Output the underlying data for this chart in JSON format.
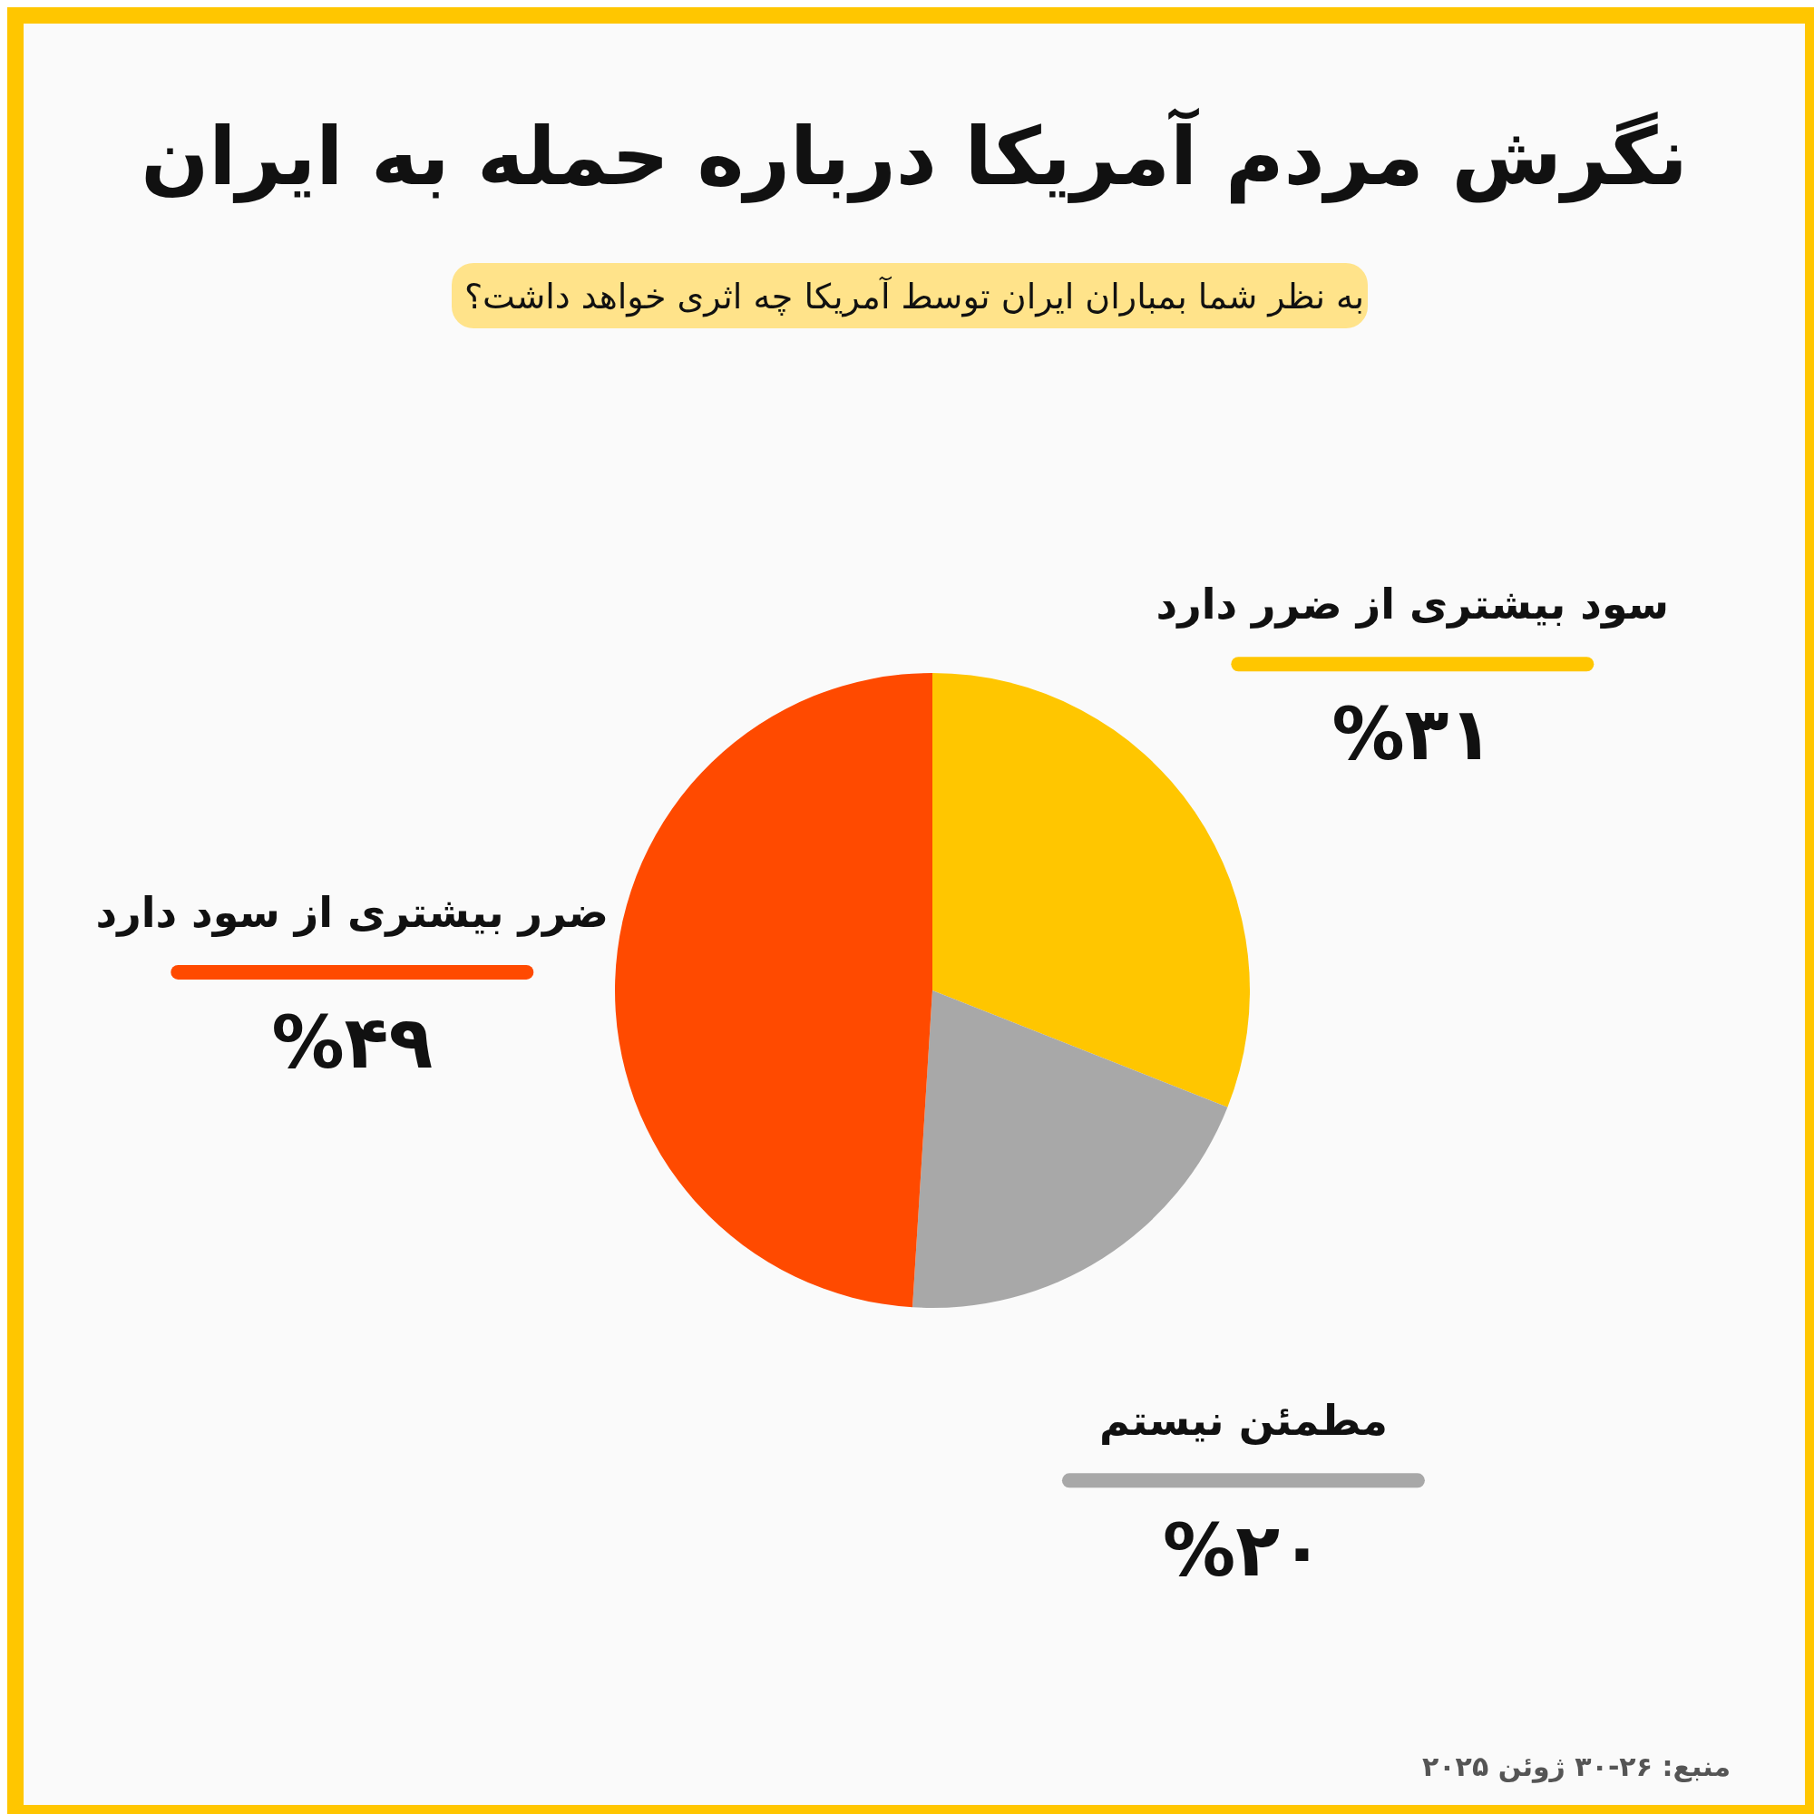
{
  "chart_data": {
    "type": "pie",
    "title": "نگرش مردم آمریکا درباره حمله به ایران",
    "subtitle": "به نظر شما بمباران ایران توسط آمریکا چه اثری خواهد داشت؟",
    "categories": [
      "سود بیشتری از ضرر دارد",
      "مطمئن نیستم",
      "ضرر بیشتری از سود دارد"
    ],
    "values": [
      31,
      20,
      49
    ],
    "colors": [
      "#ffc600",
      "#a8a8a8",
      "#ff4a00"
    ],
    "value_labels": [
      "%۳۱",
      "%۲۰",
      "%۴۹"
    ],
    "annotations": [
      "منبع: ۲۶-۳۰ ژوئن ۲۰۲۵"
    ]
  }
}
